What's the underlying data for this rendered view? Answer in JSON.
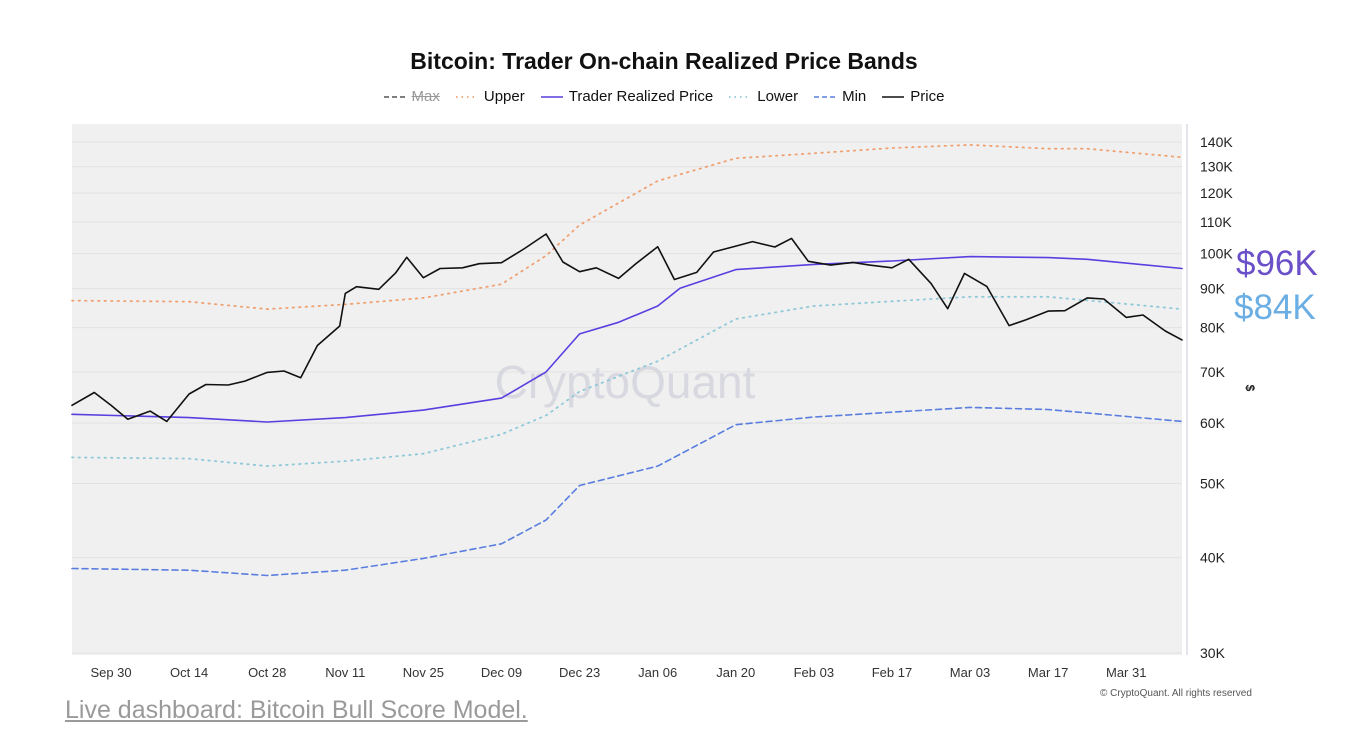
{
  "chart_data": {
    "type": "line",
    "title": "Bitcoin: Trader On-chain Realized Price Bands",
    "ylabel": "$",
    "yscale": "log",
    "ylim": [
      30000,
      145000
    ],
    "xlim": [
      "2024-09-23",
      "2025-04-10"
    ],
    "grid": true,
    "legend_position": "top",
    "y_ticks": [
      {
        "v": 30000,
        "label": "30K"
      },
      {
        "v": 40000,
        "label": "40K"
      },
      {
        "v": 50000,
        "label": "50K"
      },
      {
        "v": 60000,
        "label": "60K"
      },
      {
        "v": 70000,
        "label": "70K"
      },
      {
        "v": 80000,
        "label": "80K"
      },
      {
        "v": 90000,
        "label": "90K"
      },
      {
        "v": 100000,
        "label": "100K"
      },
      {
        "v": 110000,
        "label": "110K"
      },
      {
        "v": 120000,
        "label": "120K"
      },
      {
        "v": 130000,
        "label": "130K"
      },
      {
        "v": 140000,
        "label": "140K"
      }
    ],
    "x_ticks": [
      {
        "d": "2024-09-30",
        "label": "Sep 30"
      },
      {
        "d": "2024-10-14",
        "label": "Oct 14"
      },
      {
        "d": "2024-10-28",
        "label": "Oct 28"
      },
      {
        "d": "2024-11-11",
        "label": "Nov 11"
      },
      {
        "d": "2024-11-25",
        "label": "Nov 25"
      },
      {
        "d": "2024-12-09",
        "label": "Dec 09"
      },
      {
        "d": "2024-12-23",
        "label": "Dec 23"
      },
      {
        "d": "2025-01-06",
        "label": "Jan 06"
      },
      {
        "d": "2025-01-20",
        "label": "Jan 20"
      },
      {
        "d": "2025-02-03",
        "label": "Feb 03"
      },
      {
        "d": "2025-02-17",
        "label": "Feb 17"
      },
      {
        "d": "2025-03-03",
        "label": "Mar 03"
      },
      {
        "d": "2025-03-17",
        "label": "Mar 17"
      },
      {
        "d": "2025-03-31",
        "label": "Mar 31"
      }
    ],
    "series": [
      {
        "name": "Max",
        "color": "#555555",
        "style": "dashed",
        "hidden": true,
        "x": [],
        "y": []
      },
      {
        "name": "Upper",
        "color": "#f0a070",
        "style": "dotted",
        "x": [
          "2024-09-23",
          "2024-10-14",
          "2024-10-28",
          "2024-11-11",
          "2024-11-25",
          "2024-12-09",
          "2024-12-17",
          "2024-12-23",
          "2025-01-06",
          "2025-01-20",
          "2025-02-03",
          "2025-02-17",
          "2025-03-03",
          "2025-03-17",
          "2025-03-24",
          "2025-04-10"
        ],
        "y": [
          86800,
          86500,
          84600,
          85800,
          87500,
          91200,
          99400,
          109000,
          124500,
          133300,
          135300,
          137500,
          138800,
          137200,
          137200,
          133700
        ]
      },
      {
        "name": "Trader Realized Price",
        "color": "#5a3fe0",
        "style": "solid",
        "x": [
          "2024-09-23",
          "2024-10-14",
          "2024-10-28",
          "2024-11-11",
          "2024-11-25",
          "2024-12-09",
          "2024-12-17",
          "2024-12-23",
          "2024-12-30",
          "2025-01-06",
          "2025-01-10",
          "2025-01-20",
          "2025-02-03",
          "2025-02-17",
          "2025-03-03",
          "2025-03-17",
          "2025-03-24",
          "2025-04-10"
        ],
        "y": [
          61600,
          61000,
          60200,
          61000,
          62400,
          64700,
          70000,
          78500,
          81300,
          85400,
          90100,
          95300,
          96800,
          97800,
          99100,
          98800,
          98300,
          95600
        ]
      },
      {
        "name": "Lower",
        "color": "#8fc8d8",
        "style": "dotted",
        "x": [
          "2024-09-23",
          "2024-10-14",
          "2024-10-28",
          "2024-11-11",
          "2024-11-25",
          "2024-12-09",
          "2024-12-17",
          "2024-12-23",
          "2025-01-06",
          "2025-01-20",
          "2025-02-03",
          "2025-02-17",
          "2025-03-03",
          "2025-03-17",
          "2025-04-10"
        ],
        "y": [
          54100,
          53900,
          52700,
          53500,
          54700,
          58000,
          61400,
          66000,
          72300,
          82100,
          85400,
          86600,
          87800,
          87800,
          84600
        ]
      },
      {
        "name": "Min",
        "color": "#5a7ee0",
        "style": "dashed",
        "x": [
          "2024-09-23",
          "2024-10-14",
          "2024-10-28",
          "2024-11-11",
          "2024-11-25",
          "2024-12-09",
          "2024-12-17",
          "2024-12-23",
          "2025-01-06",
          "2025-01-20",
          "2025-02-03",
          "2025-02-17",
          "2025-03-03",
          "2025-03-17",
          "2025-04-10"
        ],
        "y": [
          38700,
          38500,
          37900,
          38500,
          39900,
          41700,
          44800,
          49700,
          52700,
          59700,
          61100,
          62000,
          62900,
          62500,
          60300
        ]
      },
      {
        "name": "Price",
        "color": "#111111",
        "style": "solid",
        "x": [
          "2024-09-23",
          "2024-09-27",
          "2024-09-30",
          "2024-10-03",
          "2024-10-07",
          "2024-10-10",
          "2024-10-14",
          "2024-10-17",
          "2024-10-21",
          "2024-10-24",
          "2024-10-28",
          "2024-10-31",
          "2024-11-03",
          "2024-11-06",
          "2024-11-10",
          "2024-11-11",
          "2024-11-13",
          "2024-11-17",
          "2024-11-20",
          "2024-11-22",
          "2024-11-25",
          "2024-11-28",
          "2024-12-02",
          "2024-12-05",
          "2024-12-09",
          "2024-12-13",
          "2024-12-17",
          "2024-12-20",
          "2024-12-23",
          "2024-12-26",
          "2024-12-30",
          "2025-01-02",
          "2025-01-06",
          "2025-01-09",
          "2025-01-13",
          "2025-01-16",
          "2025-01-20",
          "2025-01-23",
          "2025-01-27",
          "2025-01-30",
          "2025-02-02",
          "2025-02-06",
          "2025-02-10",
          "2025-02-13",
          "2025-02-17",
          "2025-02-20",
          "2025-02-24",
          "2025-02-27",
          "2025-03-02",
          "2025-03-06",
          "2025-03-10",
          "2025-03-13",
          "2025-03-17",
          "2025-03-20",
          "2025-03-24",
          "2025-03-27",
          "2025-03-31",
          "2025-04-03",
          "2025-04-07",
          "2025-04-10"
        ],
        "y": [
          63300,
          65800,
          63300,
          60700,
          62200,
          60300,
          65500,
          67400,
          67300,
          68100,
          69900,
          70200,
          68800,
          75800,
          80400,
          88700,
          90500,
          89800,
          94300,
          98900,
          93000,
          95600,
          95800,
          97000,
          97300,
          101400,
          106100,
          97500,
          94700,
          95800,
          92800,
          96900,
          102100,
          92500,
          94500,
          100500,
          102300,
          103700,
          102000,
          104700,
          97700,
          96600,
          97400,
          96600,
          95800,
          98300,
          91400,
          84700,
          94200,
          90600,
          80500,
          81900,
          84100,
          84200,
          87500,
          87200,
          82500,
          83100,
          79200,
          77100
        ]
      }
    ],
    "annotations": [
      "$96K",
      "$84K"
    ],
    "watermark": "CryptoQuant",
    "copyright": "© CryptoQuant. All rights reserved"
  },
  "footer": {
    "link_text": "Live dashboard: Bitcoin Bull Score Model."
  }
}
